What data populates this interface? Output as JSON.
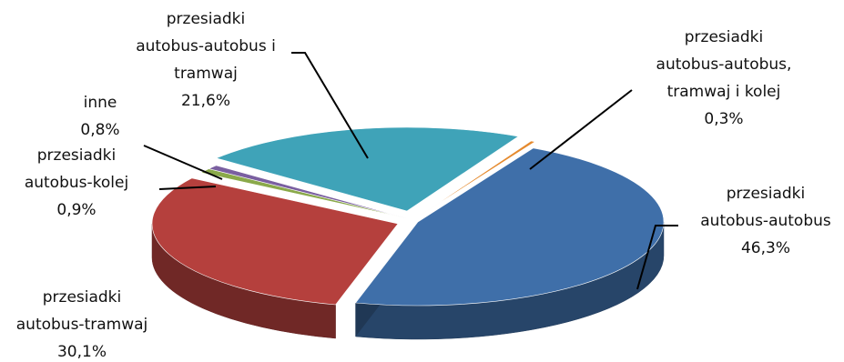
{
  "chart_data": {
    "type": "pie",
    "title": "",
    "slices": [
      {
        "lines": [
          "przesiadki",
          "autobus-autobus"
        ],
        "pct": "46,3%",
        "value": 46.3,
        "color": "#3f6fa9"
      },
      {
        "lines": [
          "przesiadki",
          "autobus-tramwaj"
        ],
        "pct": "30,1%",
        "value": 30.1,
        "color": "#b5403d"
      },
      {
        "lines": [
          "przesiadki",
          "autobus-kolej"
        ],
        "pct": "0,9%",
        "value": 0.9,
        "color": "#8aa94a"
      },
      {
        "lines": [
          "inne"
        ],
        "pct": "0,8%",
        "value": 0.8,
        "color": "#7a5fa0"
      },
      {
        "lines": [
          "przesiadki",
          "autobus-autobus i",
          "tramwaj"
        ],
        "pct": "21,6%",
        "value": 21.6,
        "color": "#3fa3b8"
      },
      {
        "lines": [
          "przesiadki",
          "autobus-autobus,",
          "tramwaj i kolej"
        ],
        "pct": "0,3%",
        "value": 0.3,
        "color": "#e58a2e"
      }
    ]
  }
}
